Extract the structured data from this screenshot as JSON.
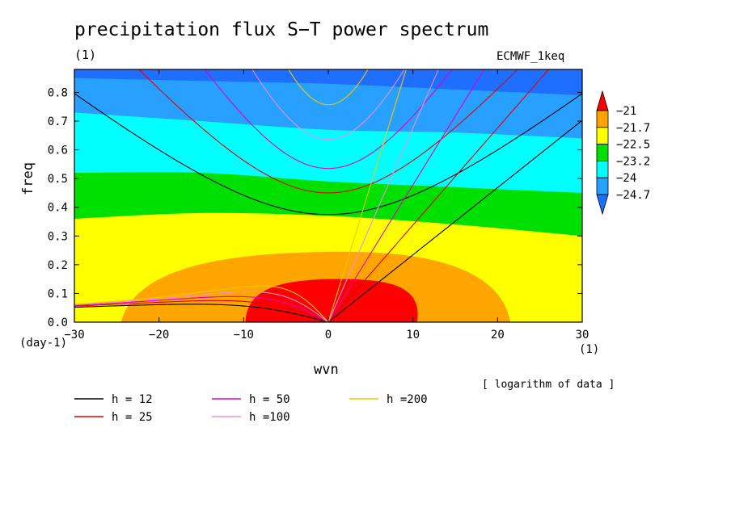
{
  "title": "precipitation flux S−T power spectrum",
  "subtitle": "(1)",
  "dataset_label": "ECMWF_1keq",
  "note": "[ logarithm of data ]",
  "chart_data": {
    "type": "contour",
    "title": "precipitation flux S−T power spectrum",
    "xlabel": "wvn",
    "ylabel": "freq",
    "x_unit": "(1)",
    "y_unit": "(day-1)",
    "xlim": [
      -30,
      30
    ],
    "ylim": [
      0,
      0.88
    ],
    "x_ticks": [
      -30,
      -20,
      -10,
      0,
      10,
      20,
      30
    ],
    "x_tick_labels": [
      "−30",
      "−20",
      "−10",
      "0",
      "10",
      "20",
      "30"
    ],
    "y_ticks": [
      0.0,
      0.1,
      0.2,
      0.3,
      0.4,
      0.5,
      0.6,
      0.7,
      0.8
    ],
    "y_tick_labels": [
      "0.0",
      "0.1",
      "0.2",
      "0.3",
      "0.4",
      "0.5",
      "0.6",
      "0.7",
      "0.8"
    ],
    "colorbar": {
      "levels": [
        -24.7,
        -24,
        -23.2,
        -22.5,
        -21.7,
        -21
      ],
      "level_labels": [
        "−24.7",
        "−24",
        "−23.2",
        "−22.5",
        "−21.7",
        "−21"
      ],
      "colors": [
        "#1e6eff",
        "#28a0ff",
        "#00ffff",
        "#00e000",
        "#ffff00",
        "#ffa500",
        "#ff0000"
      ]
    },
    "filled_bands": [
      {
        "min_level": -21,
        "color": "#ff0000",
        "region": "x -9.8 to 10.5, freq 0 to 0.15"
      },
      {
        "min_level": -21.7,
        "color": "#ffa500",
        "region": "x -24.5 to 21.5, freq 0 to 0.245"
      },
      {
        "min_level": -22.5,
        "color": "#ffff00",
        "boundary_freq_at_x": [
          [
            -30,
            0.36
          ],
          [
            -15,
            0.38
          ],
          [
            0,
            0.37
          ],
          [
            15,
            0.34
          ],
          [
            30,
            0.3
          ]
        ]
      },
      {
        "min_level": -23.2,
        "color": "#00e000",
        "boundary_freq_at_x": [
          [
            -30,
            0.52
          ],
          [
            -15,
            0.52
          ],
          [
            0,
            0.49
          ],
          [
            15,
            0.47
          ],
          [
            30,
            0.45
          ]
        ]
      },
      {
        "min_level": -24,
        "color": "#00ffff",
        "boundary_freq_at_x": [
          [
            -30,
            0.73
          ],
          [
            -15,
            0.7
          ],
          [
            0,
            0.67
          ],
          [
            15,
            0.66
          ],
          [
            30,
            0.64
          ]
        ]
      },
      {
        "min_level": -24.7,
        "color": "#28a0ff",
        "boundary_freq_at_x": [
          [
            -30,
            0.85
          ],
          [
            -15,
            0.84
          ],
          [
            0,
            0.83
          ],
          [
            15,
            0.81
          ],
          [
            30,
            0.79
          ]
        ]
      },
      {
        "min_level": null,
        "color": "#1e6eff",
        "region": "above -24.7 band"
      }
    ],
    "dispersion_curves": [
      {
        "name": "h = 12",
        "equivalent_depth": 12,
        "color": "#000000"
      },
      {
        "name": "h = 25",
        "equivalent_depth": 25,
        "color": "#e00000"
      },
      {
        "name": "h = 50",
        "equivalent_depth": 50,
        "color": "#e000c0"
      },
      {
        "name": "h =100",
        "equivalent_depth": 100,
        "color": "#e890e0"
      },
      {
        "name": "h =200",
        "equivalent_depth": 200,
        "color": "#f0c800"
      }
    ],
    "legend_placement": "bottom"
  }
}
